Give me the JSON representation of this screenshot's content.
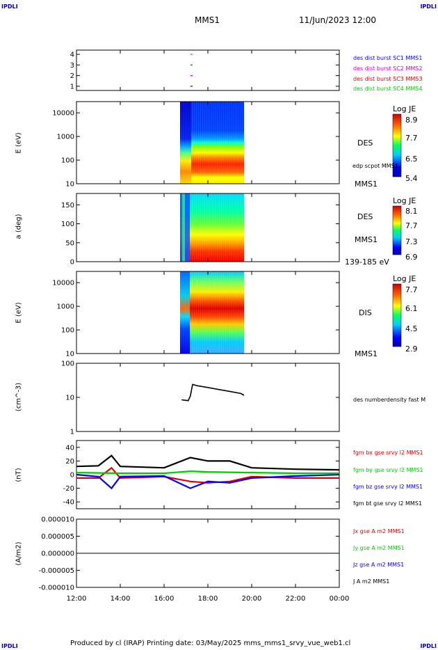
{
  "corners": {
    "top_left": "IPDLI",
    "top_right": "IPDLI",
    "bottom_left": "IPDLI",
    "bottom_right": "IPDLI"
  },
  "header": {
    "spacecraft": "MMS1",
    "datetime": "11/Jun/2023 12:00"
  },
  "footer": {
    "text": "Produced by cl (IRAP)   Printing date: 03/May/2025   mms_mms1_srvy_vue_web1.cl"
  },
  "colors": {
    "blue": "#0000ff",
    "magenta": "#cc00cc",
    "red": "#dd0000",
    "green": "#00cc00",
    "black": "#000000"
  },
  "chart_data": [
    {
      "type": "line",
      "panel": "burst",
      "xlabel": "",
      "ylabel": "",
      "yticks": [
        "1",
        "2",
        "3",
        "4"
      ],
      "ylim": [
        0.6,
        4.4
      ],
      "legend": [
        "des dist burst SC1 MMS1",
        "des dist burst SC2 MMS2",
        "des dist burst SC3 MMS3",
        "des dist burst SC4 MMS4"
      ],
      "series": [
        {
          "name": "des dist burst SC1 MMS1",
          "x": [
            17.25
          ],
          "y": [
            1
          ]
        },
        {
          "name": "des dist burst SC2 MMS2",
          "x": [
            17.25
          ],
          "y": [
            2
          ]
        },
        {
          "name": "des dist burst SC3 MMS3",
          "x": [
            17.25
          ],
          "y": [
            3
          ]
        },
        {
          "name": "des dist burst SC4 MMS4",
          "x": [
            17.25
          ],
          "y": [
            4
          ]
        }
      ]
    },
    {
      "type": "heatmap",
      "panel": "des_energy",
      "ylabel": "E (eV)",
      "yticks": [
        "10000",
        "1000",
        "100",
        "10"
      ],
      "ylim": [
        10,
        30000
      ],
      "log_y": true,
      "xrange_data": [
        16.75,
        19.65
      ],
      "instrument": "DES",
      "side_labels": [
        "DES",
        "edp scpot MMS1",
        "MMS1"
      ],
      "colorbar": {
        "title": "Log JE",
        "ticks": [
          "8.9",
          "7.7",
          "6.5",
          "5.4"
        ],
        "range": [
          5.4,
          8.9
        ]
      }
    },
    {
      "type": "heatmap",
      "panel": "des_pitch",
      "ylabel": "a (deg)",
      "yticks": [
        "150",
        "100",
        "50",
        "0"
      ],
      "ylim": [
        0,
        180
      ],
      "xrange_data": [
        16.75,
        19.65
      ],
      "side_labels": [
        "DES",
        "MMS1",
        "139-185 eV"
      ],
      "colorbar": {
        "title": "Log JE",
        "ticks": [
          "8.1",
          "7.7",
          "7.3",
          "6.9"
        ],
        "range": [
          6.9,
          8.1
        ]
      }
    },
    {
      "type": "heatmap",
      "panel": "dis_energy",
      "ylabel": "E (eV)",
      "yticks": [
        "10000",
        "1000",
        "100",
        "10"
      ],
      "ylim": [
        10,
        30000
      ],
      "log_y": true,
      "xrange_data": [
        16.75,
        19.65
      ],
      "side_labels": [
        "DIS",
        "MMS1"
      ],
      "colorbar": {
        "title": "Log JE",
        "ticks": [
          "7.7",
          "6.1",
          "4.5",
          "2.9"
        ],
        "range": [
          2.9,
          7.7
        ]
      }
    },
    {
      "type": "line",
      "panel": "density",
      "ylabel": "(cm^-3)",
      "yticks": [
        "100",
        "10",
        "1"
      ],
      "ylim": [
        1,
        100
      ],
      "log_y": true,
      "legend": [
        "des numberdensity fast M"
      ],
      "series": [
        {
          "name": "des numberdensity fast M",
          "x": [
            16.8,
            17.1,
            17.2,
            17.3,
            17.5,
            18.0,
            18.5,
            19.0,
            19.5,
            19.65
          ],
          "y": [
            8.5,
            8.0,
            11,
            24,
            22,
            19.5,
            17,
            15,
            13,
            11.5
          ]
        }
      ]
    },
    {
      "type": "line",
      "panel": "magnetic_field",
      "ylabel": "(nT)",
      "yticks": [
        "40",
        "20",
        "0",
        "-20",
        "-40"
      ],
      "ylim": [
        -50,
        50
      ],
      "legend": [
        "fgm bx gse srvy l2 MMS1",
        "fgm by gse srvy l2 MMS1",
        "fgm bz gse srvy l2 MMS1",
        "fgm bt gse srvy l2 MMS1"
      ],
      "series": [
        {
          "name": "fgm bx gse srvy l2 MMS1",
          "x": [
            12,
            13,
            13.6,
            14,
            16,
            17.2,
            18,
            19,
            20,
            22,
            24
          ],
          "y": [
            -5,
            -5,
            10,
            -5,
            -3,
            -10,
            -12,
            -10,
            -3,
            -5,
            -5
          ]
        },
        {
          "name": "fgm by gse srvy l2 MMS1",
          "x": [
            12,
            14,
            16,
            17.2,
            18,
            20,
            22,
            24
          ],
          "y": [
            3,
            2,
            2,
            5,
            4,
            3,
            2,
            2
          ]
        },
        {
          "name": "fgm bz gse srvy l2 MMS1",
          "x": [
            12,
            13,
            13.6,
            14,
            16,
            17.2,
            18,
            19,
            20,
            22,
            24
          ],
          "y": [
            0,
            -3,
            -20,
            -3,
            -2,
            -20,
            -10,
            -12,
            -5,
            -2,
            0
          ]
        },
        {
          "name": "fgm bt gse srvy l2 MMS1",
          "x": [
            12,
            13,
            13.6,
            14,
            16,
            17.2,
            18,
            19,
            20,
            22,
            24
          ],
          "y": [
            12,
            13,
            28,
            12,
            10,
            25,
            20,
            20,
            10,
            8,
            7
          ]
        }
      ]
    },
    {
      "type": "line",
      "panel": "current",
      "ylabel": "(A/m2)",
      "yticks": [
        "0.000010",
        "0.000005",
        "0.000000",
        "-0.000005",
        "-0.000010"
      ],
      "ylim": [
        -1e-05,
        1e-05
      ],
      "legend": [
        "Jx gse A m2 MMS1",
        "Jy gse A m2 MMS1",
        "Jz gse A m2 MMS1",
        "J A m2 MMS1"
      ],
      "series": [
        {
          "name": "Jx gse A m2 MMS1",
          "x": [
            12,
            24
          ],
          "y": [
            0,
            0
          ]
        },
        {
          "name": "Jy gse A m2 MMS1",
          "x": [
            12,
            24
          ],
          "y": [
            0,
            0
          ]
        },
        {
          "name": "Jz gse A m2 MMS1",
          "x": [
            12,
            17.25,
            24
          ],
          "y": [
            0,
            0,
            0
          ]
        },
        {
          "name": "J A m2 MMS1",
          "x": [
            12,
            24
          ],
          "y": [
            0,
            0
          ]
        }
      ]
    }
  ],
  "xaxis": {
    "ticks": [
      "12:00",
      "14:00",
      "16:00",
      "18:00",
      "20:00",
      "22:00",
      "00:00"
    ],
    "range_hours": [
      12,
      24
    ]
  }
}
